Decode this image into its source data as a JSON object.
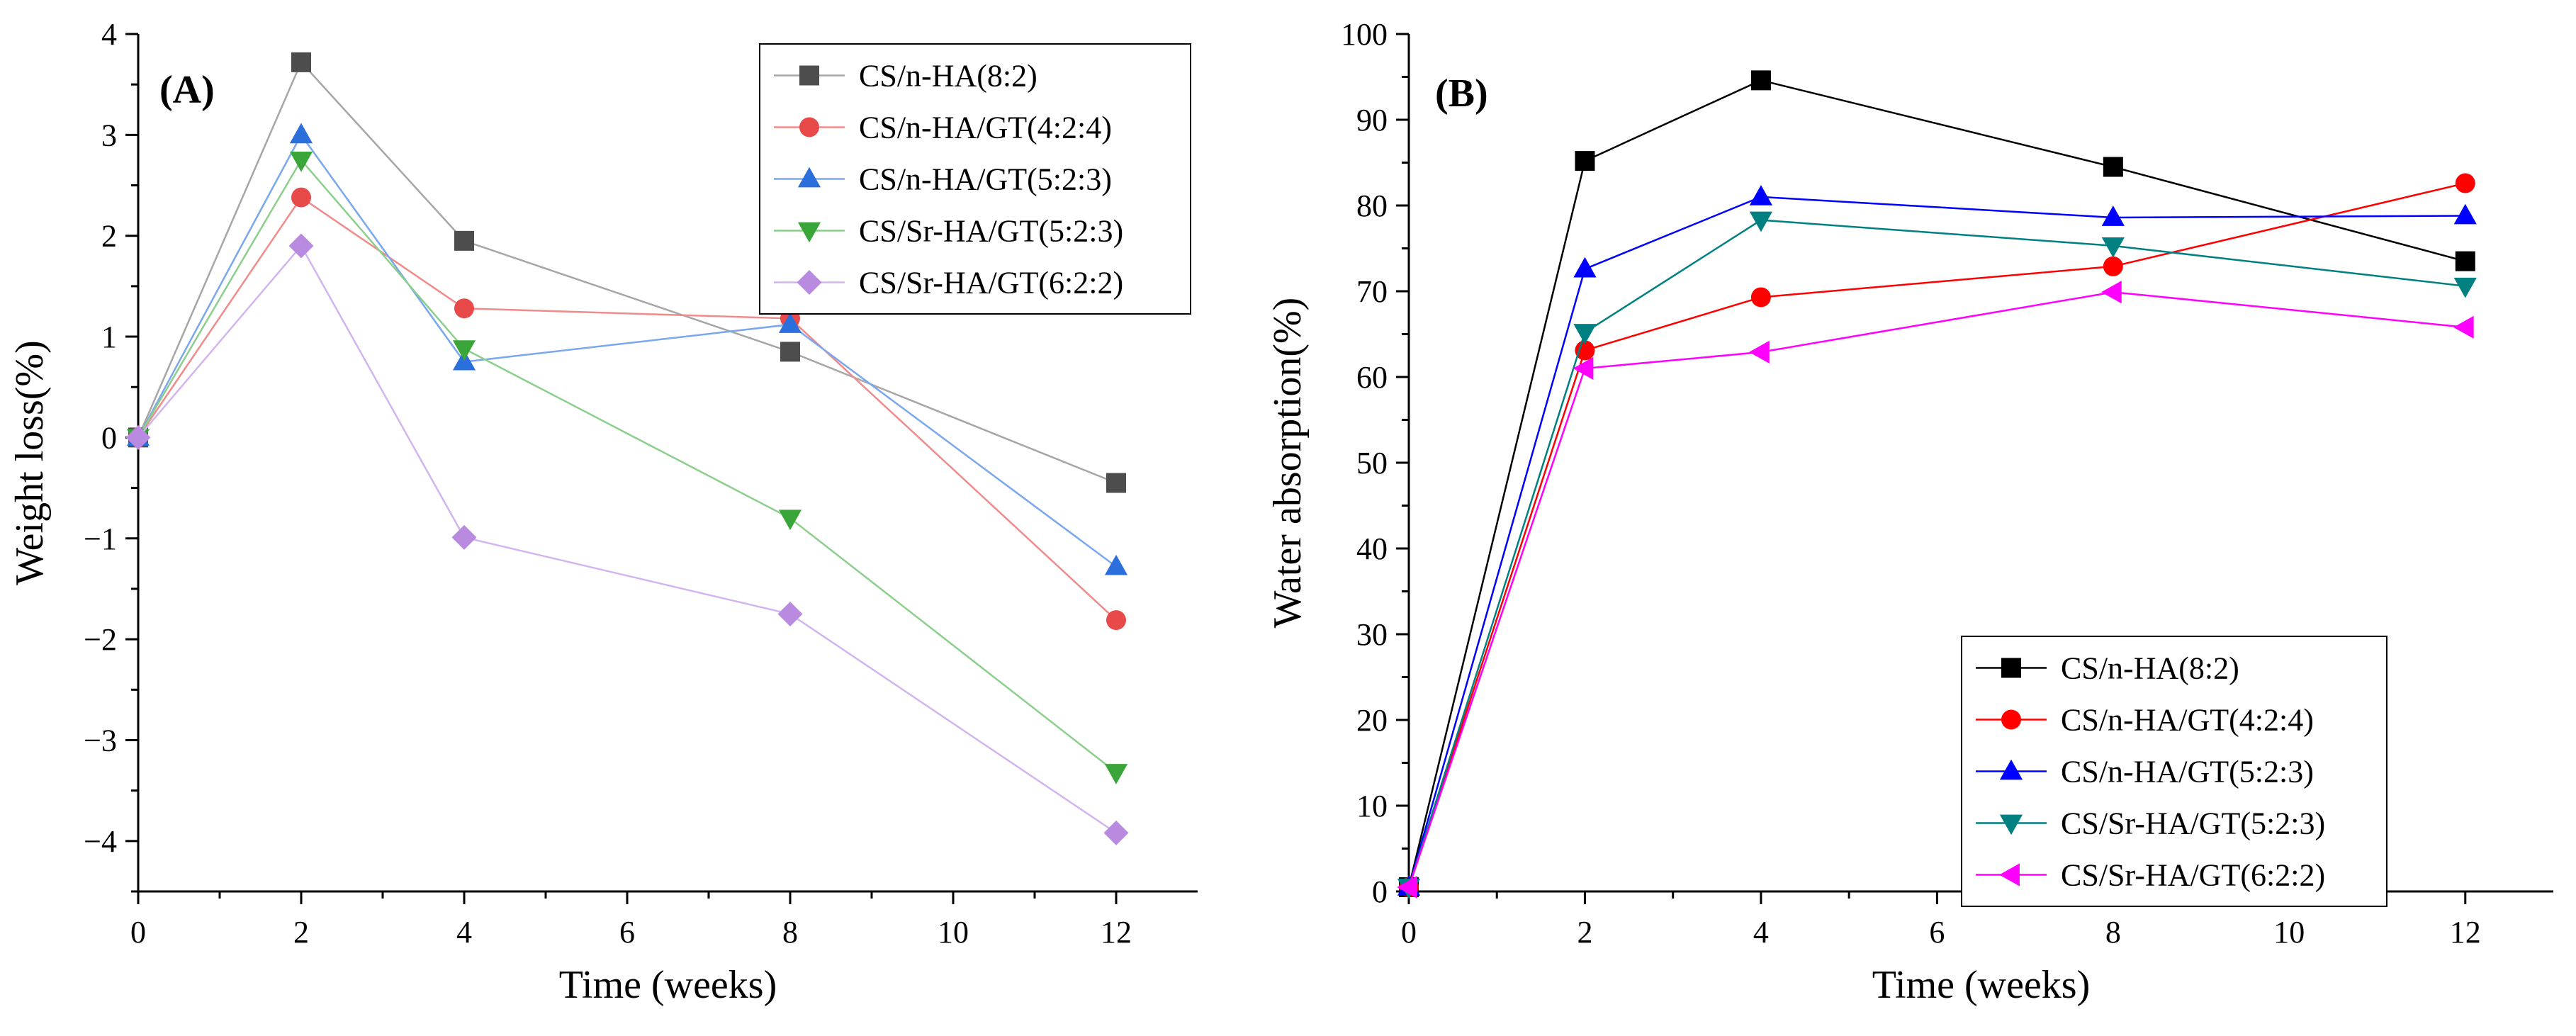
{
  "chart_data": [
    {
      "type": "line",
      "panel_label": "(A)",
      "xlabel": "Time (weeks)",
      "ylabel": "Weight loss(%)",
      "xlim": [
        0,
        13
      ],
      "ylim": [
        -4.5,
        4
      ],
      "xticks": [
        0,
        2,
        4,
        6,
        8,
        10,
        12
      ],
      "yticks": [
        -4,
        -3,
        -2,
        -1,
        0,
        1,
        2,
        3,
        4
      ],
      "legend_position": "top-right",
      "series": [
        {
          "name": "CS/n-HA(8:2)",
          "marker": "square",
          "color": "#4d4d4d",
          "line_color": "#a6a6a6",
          "x": [
            0,
            2,
            4,
            8,
            12
          ],
          "y": [
            0,
            3.72,
            1.95,
            0.85,
            -0.45
          ]
        },
        {
          "name": "CS/n-HA/GT(4:2:4)",
          "marker": "circle",
          "color": "#e84a4a",
          "line_color": "#f08b8b",
          "x": [
            0,
            2,
            4,
            8,
            12
          ],
          "y": [
            0,
            2.38,
            1.28,
            1.18,
            -1.81
          ]
        },
        {
          "name": "CS/n-HA/GT(5:2:3)",
          "marker": "triangle-up",
          "color": "#2a6fdb",
          "line_color": "#7aa7ee",
          "x": [
            0,
            2,
            4,
            8,
            12
          ],
          "y": [
            0,
            3.0,
            0.75,
            1.12,
            -1.28
          ]
        },
        {
          "name": "CS/Sr-HA/GT(5:2:3)",
          "marker": "triangle-down",
          "color": "#3aa63a",
          "line_color": "#8ccf8c",
          "x": [
            0,
            2,
            4,
            8,
            12
          ],
          "y": [
            0,
            2.75,
            0.88,
            -0.8,
            -3.32
          ]
        },
        {
          "name": "CS/Sr-HA/GT(6:2:2)",
          "marker": "diamond",
          "color": "#b98be0",
          "line_color": "#d2b4ef",
          "x": [
            0,
            2,
            4,
            8,
            12
          ],
          "y": [
            0,
            1.9,
            -0.99,
            -1.75,
            -3.92
          ]
        }
      ]
    },
    {
      "type": "line",
      "panel_label": "(B)",
      "xlabel": "Time (weeks)",
      "ylabel": "Water absorption(%)",
      "xlim": [
        0,
        13
      ],
      "ylim": [
        0,
        100
      ],
      "xticks": [
        0,
        2,
        4,
        6,
        8,
        10,
        12
      ],
      "yticks": [
        0,
        10,
        20,
        30,
        40,
        50,
        60,
        70,
        80,
        90,
        100
      ],
      "legend_position": "bottom-right",
      "series": [
        {
          "name": "CS/n-HA(8:2)",
          "marker": "square",
          "color": "#000000",
          "line_color": "#000000",
          "x": [
            0,
            2,
            4,
            8,
            12
          ],
          "y": [
            0.5,
            85.2,
            94.6,
            84.5,
            73.5
          ]
        },
        {
          "name": "CS/n-HA/GT(4:2:4)",
          "marker": "circle",
          "color": "#ff0000",
          "line_color": "#ff0000",
          "x": [
            0,
            2,
            4,
            8,
            12
          ],
          "y": [
            0.5,
            63.1,
            69.3,
            72.9,
            82.6
          ]
        },
        {
          "name": "CS/n-HA/GT(5:2:3)",
          "marker": "triangle-up",
          "color": "#0000ff",
          "line_color": "#0000ff",
          "x": [
            0,
            2,
            4,
            8,
            12
          ],
          "y": [
            0.5,
            72.6,
            81.0,
            78.6,
            78.8
          ]
        },
        {
          "name": "CS/Sr-HA/GT(5:2:3)",
          "marker": "triangle-down",
          "color": "#008080",
          "line_color": "#008080",
          "x": [
            0,
            2,
            4,
            8,
            12
          ],
          "y": [
            0.5,
            65.2,
            78.3,
            75.3,
            70.6
          ]
        },
        {
          "name": "CS/Sr-HA/GT(6:2:2)",
          "marker": "triangle-left",
          "color": "#ff00ff",
          "line_color": "#ff00ff",
          "x": [
            0,
            2,
            4,
            8,
            12
          ],
          "y": [
            0.5,
            61.0,
            62.9,
            69.9,
            65.8
          ]
        }
      ]
    }
  ]
}
